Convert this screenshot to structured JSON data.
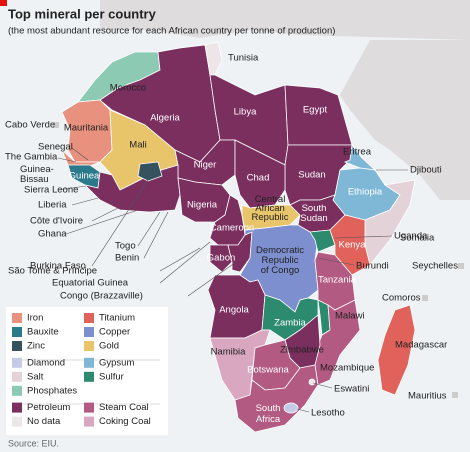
{
  "header": {
    "title": "Top mineral per country",
    "subtitle": "(the most abundant resource for each African country per tonne of production)"
  },
  "labels": [
    "Morocco",
    "Tunisia",
    "Algeria",
    "Libya",
    "Egypt",
    "Cabo Verde",
    "Mauritania",
    "Mali",
    "Senegal",
    "The Gambia",
    {
      "lines": [
        "Guinea-",
        "Bissau"
      ]
    },
    "Guinea",
    "Sierra Leone",
    "Liberia",
    "Côte d'Ivoire",
    "Ghana",
    "Burkina Faso",
    "Togo",
    "Benin",
    "São Tomé & Príncipe",
    "Equatorial Guinea",
    "Congo (Brazzaville)",
    "Niger",
    "Chad",
    "Sudan",
    "Nigeria",
    "Eritrea",
    "Djibouti",
    "Ethiopia",
    "Somalia",
    {
      "lines": [
        "Central",
        "African",
        "Republic"
      ]
    },
    {
      "lines": [
        "South",
        "Sudan"
      ]
    },
    "Cameroon",
    "Gabon",
    {
      "lines": [
        "Democratic",
        "Republic",
        "of Congo"
      ]
    },
    "Uganda",
    "Kenya",
    "Burundi",
    "Seychelles",
    "Tanzania",
    "Comoros",
    "Angola",
    "Zambia",
    "Malawi",
    "Madagascar",
    "Namibia",
    "Zimbabwe",
    "Mozambique",
    "Botswana",
    "Eswatini",
    "Mauritius",
    {
      "lines": [
        "South",
        "Africa"
      ]
    },
    "Lesotho"
  ],
  "legend": [
    {
      "label": "Iron",
      "color": "#e8917f"
    },
    {
      "label": "Titanium",
      "color": "#e0625a"
    },
    {
      "label": "Bauxite",
      "color": "#2b7a8c"
    },
    {
      "label": "Copper",
      "color": "#7d8fcf"
    },
    {
      "label": "Zinc",
      "color": "#35525e"
    },
    {
      "label": "Gold",
      "color": "#e8c46b"
    },
    {
      "label": "Diamond",
      "color": "#c5cbe6"
    },
    {
      "label": "Gypsum",
      "color": "#7fb8d6"
    },
    {
      "label": "Salt",
      "color": "#e3d3d8"
    },
    {
      "label": "Sulfur",
      "color": "#2c8a6e"
    },
    {
      "label": "Phosphates",
      "color": "#8ccab3"
    },
    {
      "label": "Petroleum",
      "color": "#7a2f5f"
    },
    {
      "label": "Steam Coal",
      "color": "#b25a82"
    },
    {
      "label": "No data",
      "color": "#ece6e9"
    },
    {
      "label": "Coking Coal",
      "color": "#d9a8c0"
    }
  ],
  "source": "Source: EIU."
}
